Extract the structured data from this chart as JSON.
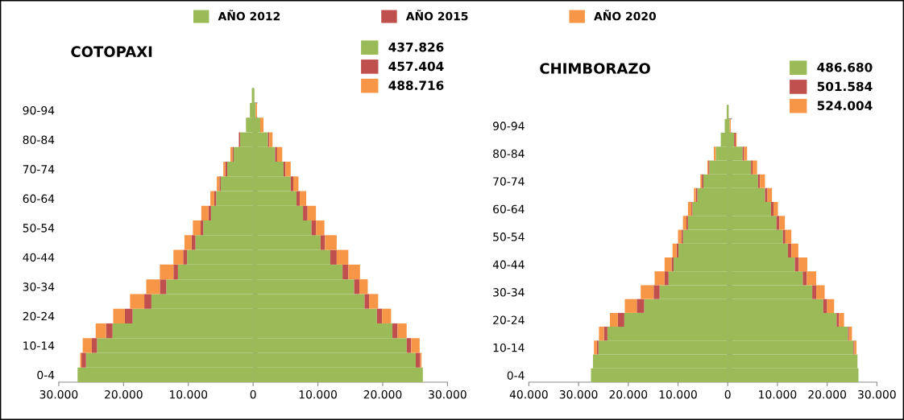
{
  "chart_data": [
    {
      "type": "bar",
      "orientation": "horizontal",
      "stacked": true,
      "title": "COTOPAXI",
      "legend": "top right",
      "categories": [
        null,
        "90-94",
        null,
        "80-84",
        null,
        "70-74",
        null,
        "60-64",
        null,
        "50-54",
        null,
        "40-44",
        null,
        "30-34",
        null,
        "20-24",
        null,
        "10-14",
        null,
        "0-4"
      ],
      "xlim": [
        -30000,
        30000
      ],
      "xticks": [
        {
          "value": -30000,
          "label": "30.000"
        },
        {
          "value": -20000,
          "label": "20.000"
        },
        {
          "value": -10000,
          "label": "10.000"
        },
        0,
        {
          "value": 10000,
          "label": "10.000"
        },
        {
          "value": 20000,
          "label": "20.000"
        },
        {
          "value": 30000,
          "label": "30.000"
        }
      ],
      "series": [
        {
          "name": "AÑO 2012",
          "color": "#9bbb59",
          "values": [
            -200,
            -500,
            -1100,
            -2000,
            -3000,
            -4000,
            -5000,
            -5700,
            -6500,
            -7700,
            -8900,
            -10200,
            -11600,
            -13400,
            -15700,
            -18600,
            -21700,
            -24100,
            -25800,
            -27100
          ]
        },
        {
          "name": "AÑO 2015",
          "color": "#c0504d",
          "values": [
            null,
            null,
            null,
            -200,
            -200,
            -300,
            -200,
            -300,
            -400,
            -400,
            -600,
            -600,
            -700,
            -1000,
            -1100,
            -1200,
            -1000,
            -800,
            -700,
            null
          ]
        },
        {
          "name": "AÑO 2020",
          "color": "#f79646",
          "values": [
            null,
            null,
            null,
            null,
            -300,
            -300,
            -400,
            -600,
            -1100,
            -1200,
            -1100,
            -1500,
            -2100,
            -2100,
            -2200,
            -1800,
            -1600,
            -1400,
            -200,
            null
          ]
        },
        {
          "name": "437.826",
          "color": "#9bbb59",
          "values": [
            200,
            400,
            1100,
            2300,
            3400,
            4700,
            5800,
            6700,
            7700,
            9000,
            10400,
            11900,
            13800,
            15600,
            17200,
            19100,
            21500,
            23700,
            25100,
            26200
          ]
        },
        {
          "name": "457.404",
          "color": "#c0504d",
          "values": [
            null,
            null,
            null,
            200,
            300,
            300,
            400,
            500,
            700,
            700,
            700,
            1000,
            900,
            800,
            700,
            800,
            800,
            700,
            700,
            null
          ]
        },
        {
          "name": "488.716",
          "color": "#f79646",
          "values": [
            null,
            200,
            500,
            500,
            800,
            800,
            800,
            1000,
            1300,
            1300,
            1800,
            1800,
            1800,
            1300,
            1400,
            1400,
            1400,
            1300,
            200,
            null
          ]
        }
      ]
    },
    {
      "type": "bar",
      "orientation": "horizontal",
      "stacked": true,
      "title": "CHIMBORAZO",
      "legend": "top right",
      "categories": [
        null,
        "90-94",
        null,
        "80-84",
        null,
        "70-74",
        null,
        "60-64",
        null,
        "50-54",
        null,
        "40-44",
        null,
        "30-34",
        null,
        "20-24",
        null,
        "10-14",
        null,
        "0-4"
      ],
      "xlim": [
        -40000,
        30000
      ],
      "xticks": [
        {
          "value": -40000,
          "label": "40.000"
        },
        {
          "value": -30000,
          "label": "30.000"
        },
        {
          "value": -20000,
          "label": "20.000"
        },
        {
          "value": -10000,
          "label": "10.000"
        },
        0,
        {
          "value": 10000,
          "label": "10.000"
        },
        {
          "value": 20000,
          "label": "20.000"
        },
        {
          "value": 30000,
          "label": "30.000"
        }
      ],
      "series": [
        {
          "color": "#9bbb59",
          "values": [
            -200,
            -600,
            -1400,
            -2400,
            -3700,
            -4900,
            -6100,
            -7100,
            -8000,
            -9000,
            -9900,
            -10900,
            -11900,
            -13700,
            -16800,
            -20800,
            -24200,
            -26000,
            -27100,
            -27500
          ]
        },
        {
          "color": "#c0504d",
          "values": [
            null,
            null,
            null,
            null,
            -200,
            -300,
            -300,
            -200,
            -300,
            -300,
            -400,
            -400,
            -800,
            -1200,
            -1500,
            -1300,
            -700,
            -300,
            null,
            null
          ]
        },
        {
          "color": "#f79646",
          "values": [
            null,
            null,
            null,
            -400,
            -200,
            -300,
            -400,
            -700,
            -700,
            -700,
            -800,
            -1400,
            -2000,
            -2600,
            -2400,
            -1600,
            -1000,
            -600,
            null,
            null
          ]
        },
        {
          "name": "486.680",
          "color": "#9bbb59",
          "values": [
            200,
            400,
            1300,
            3000,
            4700,
            6100,
            7500,
            8700,
            9800,
            11100,
            12100,
            13500,
            15100,
            17000,
            19200,
            21900,
            24200,
            25300,
            26100,
            26300
          ]
        },
        {
          "name": "501.584",
          "color": "#c0504d",
          "values": [
            null,
            null,
            300,
            300,
            300,
            400,
            500,
            500,
            600,
            500,
            700,
            800,
            800,
            800,
            800,
            500,
            200,
            200,
            null,
            null
          ]
        },
        {
          "name": "524.004",
          "color": "#f79646",
          "values": [
            null,
            200,
            200,
            600,
            900,
            1000,
            900,
            900,
            1100,
            1200,
            1400,
            1700,
            1900,
            1700,
            1400,
            1000,
            600,
            400,
            null,
            null
          ]
        }
      ]
    }
  ]
}
